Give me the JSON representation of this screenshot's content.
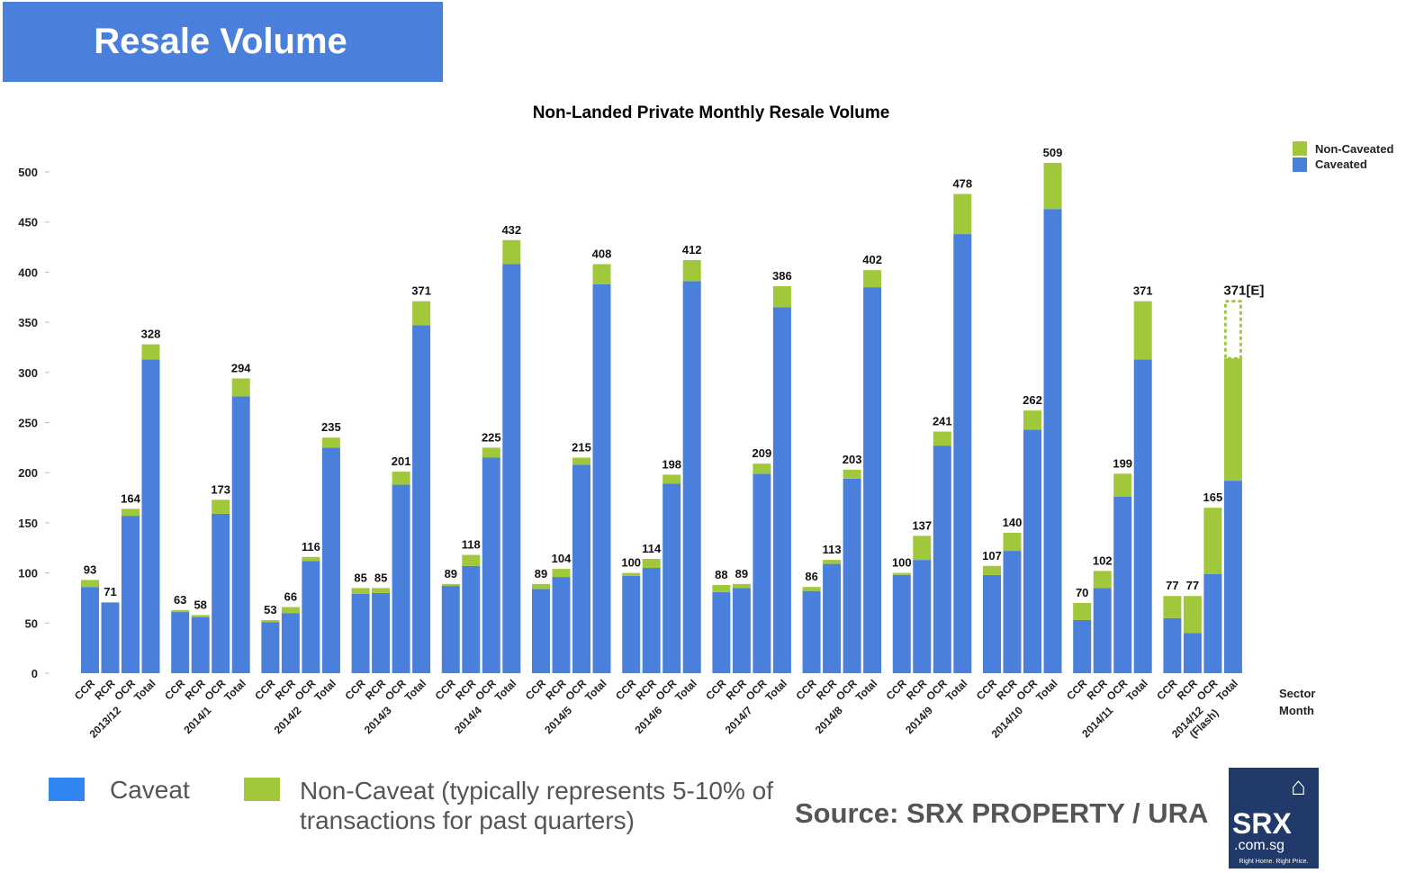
{
  "header": {
    "title": "Resale Volume"
  },
  "chart_data": {
    "type": "bar",
    "stacked": true,
    "title": "Non-Landed Private Monthly Resale Volume",
    "ylim": [
      0,
      500
    ],
    "yticks": [
      0,
      50,
      100,
      150,
      200,
      250,
      300,
      350,
      400,
      450,
      500
    ],
    "grid": false,
    "legend_position": "top-right",
    "legend": [
      "Non-Caveated",
      "Caveated"
    ],
    "x_axis_labels": [
      "Sector",
      "Month"
    ],
    "sectors": [
      "CCR",
      "RCR",
      "OCR",
      "Total"
    ],
    "months": [
      "2013/12",
      "2014/1",
      "2014/2",
      "2014/3",
      "2014/4",
      "2014/5",
      "2014/6",
      "2014/7",
      "2014/8",
      "2014/9",
      "2014/10",
      "2014/11",
      "2014/12 (Flash)"
    ],
    "colors": {
      "caveated": "#4a80dc",
      "non_caveated": "#a0c83a"
    },
    "totals": [
      [
        93,
        71,
        164,
        328
      ],
      [
        63,
        58,
        173,
        294
      ],
      [
        53,
        66,
        116,
        235
      ],
      [
        85,
        85,
        201,
        371
      ],
      [
        89,
        118,
        225,
        432
      ],
      [
        89,
        104,
        215,
        408
      ],
      [
        100,
        114,
        198,
        412
      ],
      [
        88,
        89,
        209,
        386
      ],
      [
        86,
        113,
        203,
        402
      ],
      [
        100,
        137,
        241,
        478
      ],
      [
        107,
        140,
        262,
        509
      ],
      [
        70,
        102,
        199,
        371
      ],
      [
        77,
        77,
        165,
        314
      ]
    ],
    "caveated": [
      [
        86,
        70,
        157,
        313
      ],
      [
        61,
        56,
        159,
        276
      ],
      [
        51,
        60,
        112,
        225
      ],
      [
        79,
        80,
        188,
        347
      ],
      [
        87,
        107,
        215,
        408
      ],
      [
        84,
        96,
        208,
        388
      ],
      [
        97,
        105,
        189,
        391
      ],
      [
        81,
        85,
        199,
        365
      ],
      [
        82,
        109,
        194,
        385
      ],
      [
        98,
        113,
        227,
        438
      ],
      [
        98,
        122,
        243,
        463
      ],
      [
        53,
        85,
        176,
        313
      ],
      [
        55,
        40,
        99,
        192
      ]
    ],
    "labels": [
      [
        "93",
        "71",
        "164",
        "328"
      ],
      [
        "63",
        "58",
        "173",
        "294"
      ],
      [
        "53",
        "66",
        "116",
        "235"
      ],
      [
        "85",
        "85",
        "201",
        "371"
      ],
      [
        "89",
        "118",
        "225",
        "432"
      ],
      [
        "89",
        "104",
        "215",
        "408"
      ],
      [
        "100",
        "114",
        "198",
        "412"
      ],
      [
        "88",
        "89",
        "209",
        "386"
      ],
      [
        "86",
        "113",
        "203",
        "402"
      ],
      [
        "100",
        "137",
        "241",
        "478"
      ],
      [
        "107",
        "140",
        "262",
        "509"
      ],
      [
        "70",
        "102",
        "199",
        "371"
      ],
      [
        "77",
        "77",
        "165",
        "371[E]"
      ]
    ],
    "estimate": {
      "month": "2014/12 (Flash)",
      "sector": "Total",
      "value": 371
    }
  },
  "bottom_legend": {
    "caveat": "Caveat",
    "non_caveat_line1": "Non-Caveat (typically represents 5-10% of",
    "non_caveat_line2": "transactions for past quarters)"
  },
  "source": "Source:  SRX PROPERTY / URA",
  "logo": {
    "name": "SRX",
    "domain": ".com.sg",
    "tagline": "Right Home. Right Price."
  }
}
